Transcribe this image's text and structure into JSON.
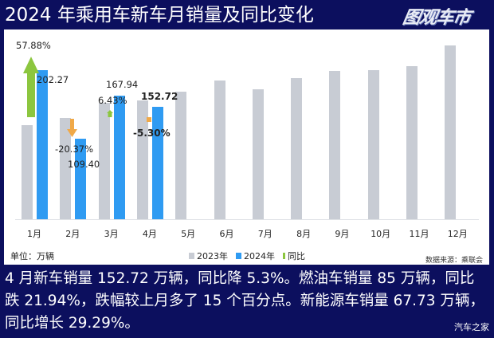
{
  "header": {
    "title": "2024 年乘用车新车月销量及同比变化",
    "logo_text": "图观车市"
  },
  "chart_data": {
    "type": "bar",
    "title": "2024 年乘用车新车月销量及同比变化",
    "categories": [
      "1月",
      "2月",
      "3月",
      "4月",
      "5月",
      "6月",
      "7月",
      "8月",
      "9月",
      "10月",
      "11月",
      "12月"
    ],
    "series": [
      {
        "name": "2023年",
        "color": "#c8ccd4",
        "values": [
          128.1,
          137.4,
          157.8,
          161.3,
          173,
          188,
          176,
          191,
          201,
          202,
          208,
          235
        ]
      },
      {
        "name": "2024年",
        "color": "#2f9bf2",
        "values": [
          202.27,
          109.4,
          167.94,
          152.72,
          null,
          null,
          null,
          null,
          null,
          null,
          null,
          null
        ]
      },
      {
        "name": "同比",
        "color": "#8cc63f",
        "values": [
          "57.88%",
          "-20.37%",
          "6.43%",
          "-5.30%",
          null,
          null,
          null,
          null,
          null,
          null,
          null,
          null
        ]
      }
    ],
    "data_labels_2024": [
      "202.27",
      "109.40",
      "167.94",
      "152.72"
    ],
    "yoy_labels": [
      "57.88%",
      "-20.37%",
      "6.43%",
      "-5.30%"
    ],
    "yoy_colors": {
      "up": "#8cc63f",
      "down": "#f0a948"
    },
    "xlabel": "",
    "ylabel": "单位：万辆",
    "ylim": [
      0,
      250
    ],
    "grid": false,
    "legend_position": "bottom"
  },
  "legend": {
    "items": [
      {
        "label": "2023年",
        "color": "#c8ccd4"
      },
      {
        "label": "2024年",
        "color": "#2f9bf2"
      },
      {
        "label": "同比",
        "color": "#8cc63f"
      }
    ]
  },
  "footer": {
    "unit": "单位：万辆",
    "source": "数据来源：乘联会"
  },
  "description": "4 月新车销量 152.72 万辆，同比降 5.3%。燃油车销量 85 万辆，同比跌 21.94%，跌幅较上月多了 15 个百分点。新能源车销量 67.73 万辆，同比增长 29.29%。",
  "watermark": "汽车之家"
}
